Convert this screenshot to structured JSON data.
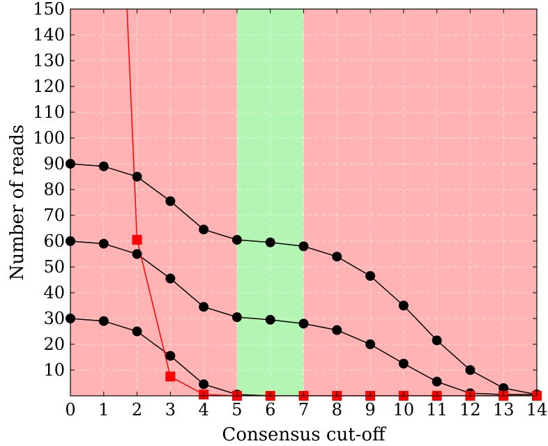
{
  "chart_data": {
    "type": "line",
    "xlabel": "Consensus cut-off",
    "ylabel": "Number of reads",
    "xlim": [
      0,
      14
    ],
    "ylim": [
      0,
      150
    ],
    "x_ticks": [
      0,
      1,
      2,
      3,
      4,
      5,
      6,
      7,
      8,
      9,
      10,
      11,
      12,
      13,
      14
    ],
    "y_ticks": [
      10,
      20,
      30,
      40,
      50,
      60,
      70,
      80,
      90,
      100,
      110,
      120,
      130,
      140,
      150
    ],
    "grid": true,
    "grid_style": "dashed",
    "background_color": "#ffb3b3",
    "highlight_band": {
      "x_start": 5,
      "x_end": 7,
      "color": "#b3f5b3"
    },
    "series": [
      {
        "marker": "circle",
        "color": "#000000",
        "x": [
          0,
          1,
          2,
          3,
          4,
          5,
          6,
          7,
          8,
          9,
          10,
          11,
          12,
          13,
          14
        ],
        "y": [
          90,
          89,
          85,
          75.5,
          64.5,
          60.5,
          59.5,
          58,
          54,
          46.5,
          35,
          21.5,
          10,
          3,
          0.5
        ]
      },
      {
        "marker": "circle",
        "color": "#000000",
        "x": [
          0,
          1,
          2,
          3,
          4,
          5,
          6,
          7,
          8,
          9,
          10,
          11,
          12,
          13,
          14
        ],
        "y": [
          60,
          59,
          55,
          45.5,
          34.5,
          30.5,
          29.5,
          28,
          25.5,
          20,
          12.5,
          5.5,
          1,
          0.5,
          0.5
        ]
      },
      {
        "marker": "circle",
        "color": "#000000",
        "x": [
          0,
          1,
          2,
          3,
          4,
          5,
          6,
          7,
          8,
          9,
          10,
          11,
          12,
          13,
          14
        ],
        "y": [
          30,
          29,
          25,
          15.5,
          4.5,
          0.5,
          0,
          0,
          0,
          0,
          0,
          0,
          0,
          0,
          0
        ]
      },
      {
        "marker": "square",
        "color": "#ff0000",
        "x": [
          1.7,
          2,
          3,
          4,
          5,
          6,
          7,
          8,
          9,
          10,
          11,
          12,
          13,
          14
        ],
        "y": [
          150,
          60.5,
          7.5,
          0.5,
          0,
          0,
          0,
          0,
          0,
          0,
          0,
          0,
          0,
          0
        ],
        "marker_points": [
          2,
          3,
          4,
          5,
          6,
          7,
          8,
          9,
          10,
          11,
          12,
          13,
          14
        ]
      }
    ]
  }
}
